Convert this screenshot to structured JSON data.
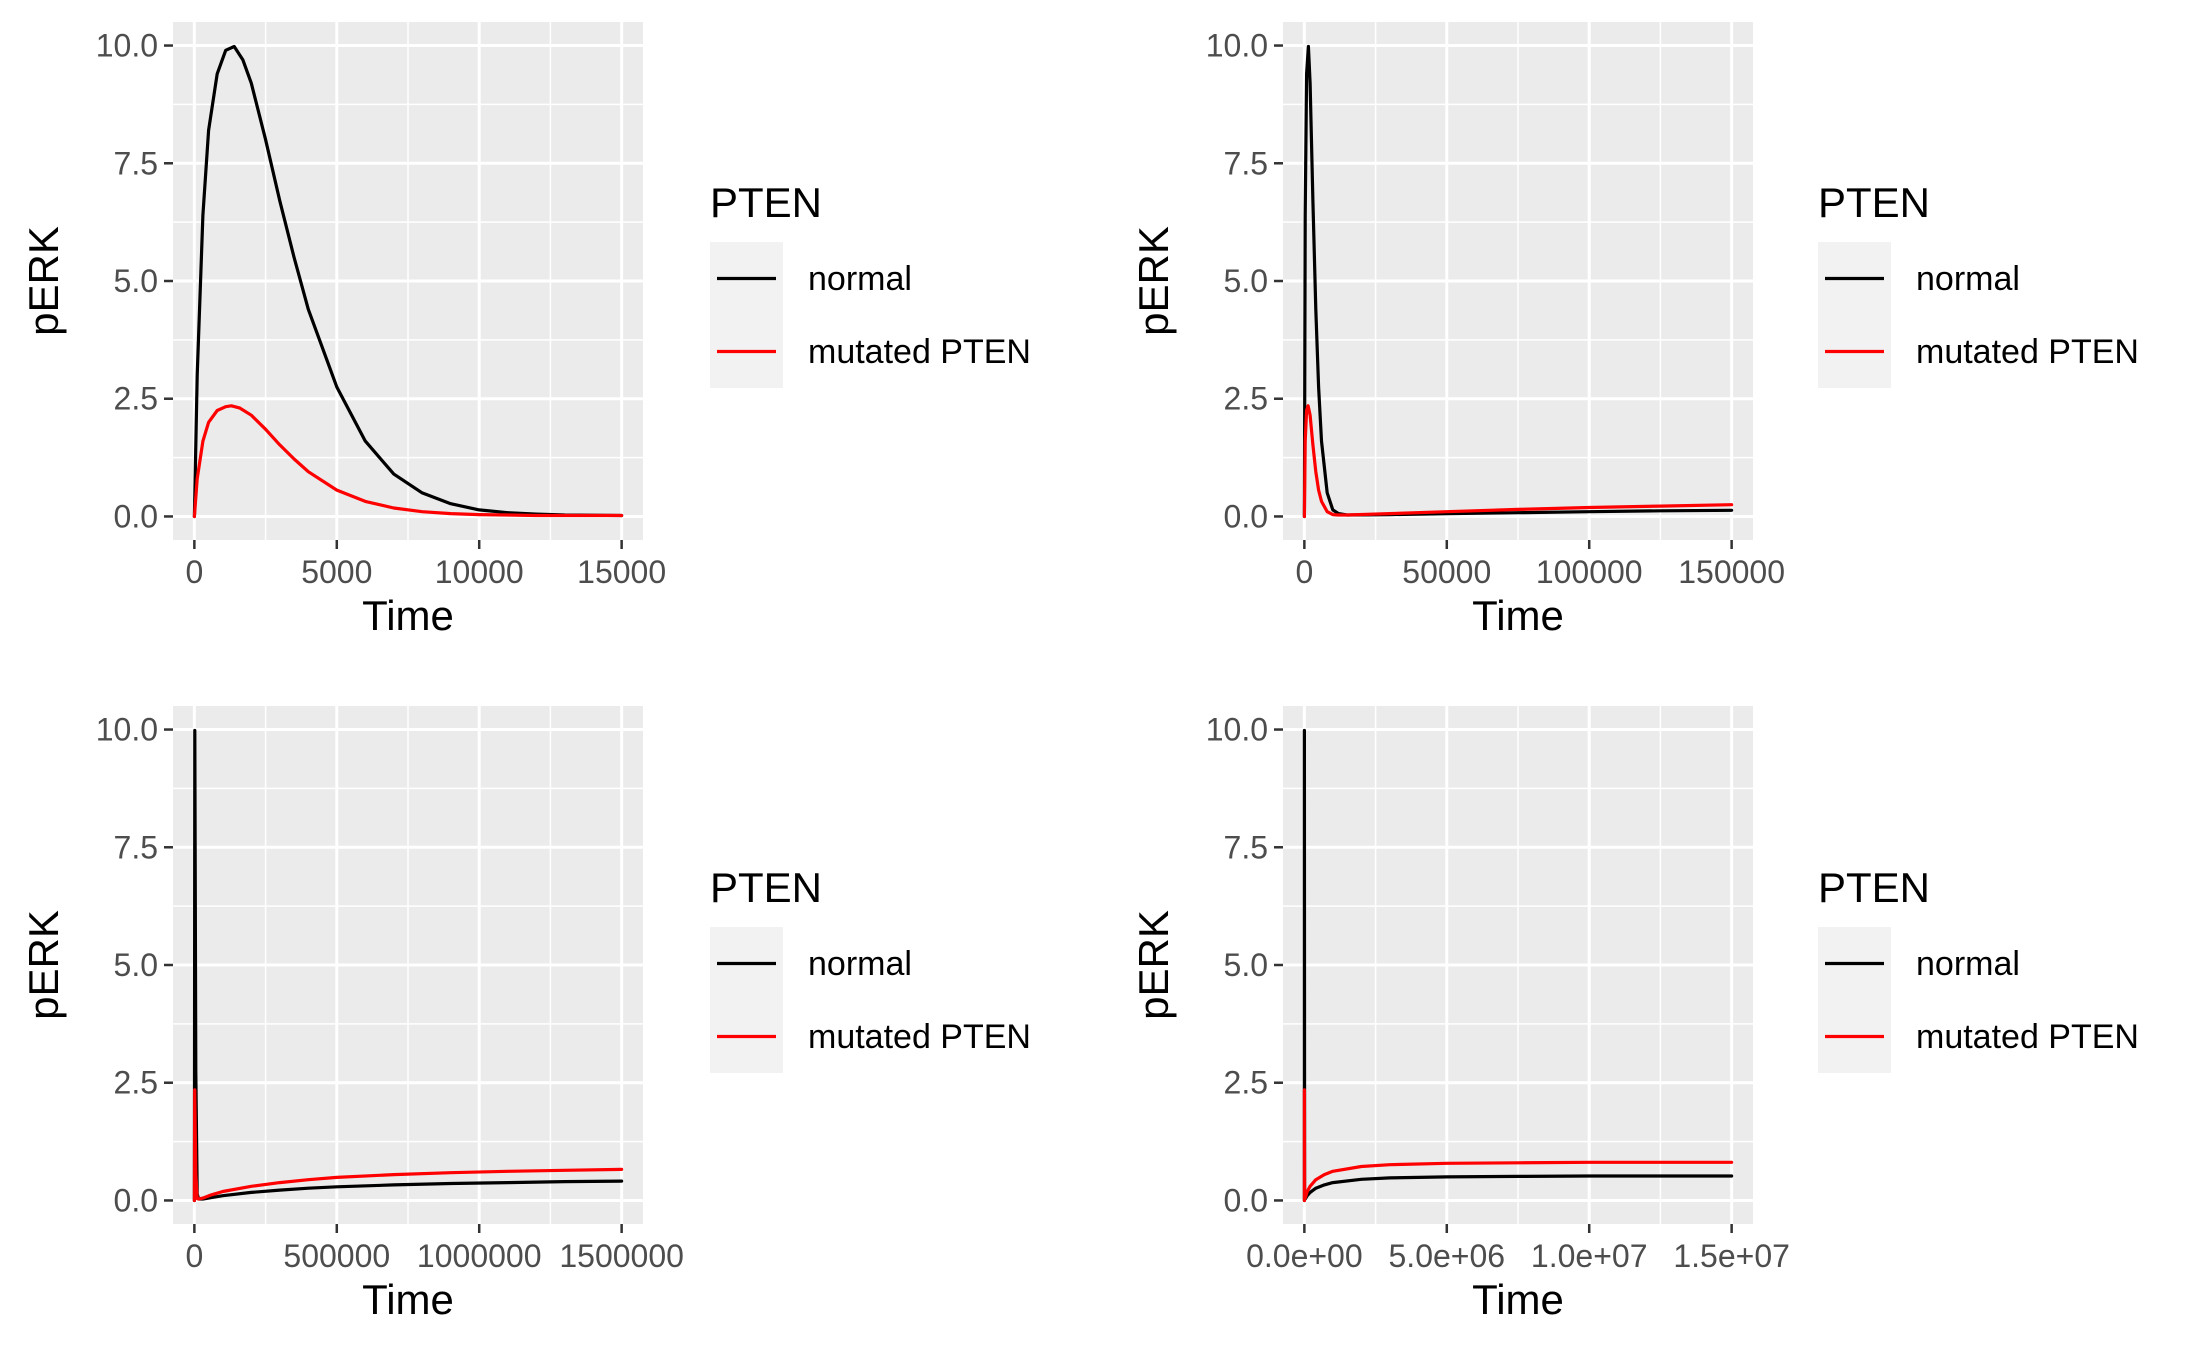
{
  "legend": {
    "title": "PTEN",
    "entries": [
      {
        "label": "normal",
        "color": "#000000"
      },
      {
        "label": "mutated PTEN",
        "color": "#ff0000"
      }
    ]
  },
  "colors": {
    "panel_background": "#ebebeb",
    "gridline": "#ffffff",
    "tick_text": "#4d4d4d",
    "normal": "#000000",
    "mutated": "#ff0000"
  },
  "chart_data": [
    {
      "type": "line",
      "xlabel": "Time",
      "ylabel": "pERK",
      "xlim": [
        -750,
        15750
      ],
      "ylim": [
        -0.5,
        10.5
      ],
      "x_ticks": [
        0,
        5000,
        10000,
        15000
      ],
      "x_tick_labels": [
        "0",
        "5000",
        "10000",
        "15000"
      ],
      "y_ticks": [
        0,
        2.5,
        5,
        7.5,
        10
      ],
      "y_tick_labels": [
        "0.0",
        "2.5",
        "5.0",
        "7.5",
        "10.0"
      ],
      "grid": true,
      "legend_position": "right",
      "series": [
        {
          "name": "normal",
          "color": "#000000",
          "x": [
            0,
            100,
            300,
            500,
            800,
            1100,
            1400,
            1700,
            2000,
            2500,
            3000,
            3500,
            4000,
            5000,
            6000,
            7000,
            8000,
            9000,
            10000,
            11000,
            12000,
            13000,
            15000
          ],
          "y": [
            0,
            3.0,
            6.4,
            8.2,
            9.4,
            9.9,
            9.98,
            9.7,
            9.2,
            8.0,
            6.7,
            5.5,
            4.4,
            2.75,
            1.6,
            0.9,
            0.5,
            0.27,
            0.14,
            0.08,
            0.05,
            0.03,
            0.02
          ]
        },
        {
          "name": "mutated PTEN",
          "color": "#ff0000",
          "x": [
            0,
            100,
            300,
            500,
            800,
            1100,
            1300,
            1600,
            2000,
            2500,
            3000,
            3500,
            4000,
            5000,
            6000,
            7000,
            8000,
            9000,
            10000,
            11000,
            12000,
            15000
          ],
          "y": [
            0,
            0.8,
            1.6,
            2.0,
            2.25,
            2.33,
            2.35,
            2.3,
            2.15,
            1.85,
            1.52,
            1.22,
            0.95,
            0.56,
            0.32,
            0.18,
            0.1,
            0.06,
            0.04,
            0.03,
            0.02,
            0.02
          ]
        }
      ]
    },
    {
      "type": "line",
      "xlabel": "Time",
      "ylabel": "pERK",
      "xlim": [
        -7500,
        157500
      ],
      "ylim": [
        -0.5,
        10.5
      ],
      "x_ticks": [
        0,
        50000,
        100000,
        150000
      ],
      "x_tick_labels": [
        "0",
        "50000",
        "100000",
        "150000"
      ],
      "y_ticks": [
        0,
        2.5,
        5,
        7.5,
        10
      ],
      "y_tick_labels": [
        "0.0",
        "2.5",
        "5.0",
        "7.5",
        "10.0"
      ],
      "grid": true,
      "legend_position": "right",
      "series": [
        {
          "name": "normal",
          "color": "#000000",
          "x": [
            0,
            300,
            800,
            1400,
            2000,
            3000,
            4000,
            5000,
            6000,
            8000,
            10000,
            12000,
            15000,
            30000,
            50000,
            75000,
            100000,
            125000,
            150000
          ],
          "y": [
            0,
            6.4,
            9.4,
            9.98,
            9.2,
            6.7,
            4.4,
            2.75,
            1.6,
            0.5,
            0.14,
            0.06,
            0.03,
            0.04,
            0.06,
            0.08,
            0.1,
            0.12,
            0.13
          ]
        },
        {
          "name": "mutated PTEN",
          "color": "#ff0000",
          "x": [
            0,
            300,
            800,
            1300,
            2000,
            3000,
            4000,
            5000,
            6000,
            8000,
            10000,
            12000,
            15000,
            30000,
            50000,
            75000,
            100000,
            125000,
            150000
          ],
          "y": [
            0,
            1.6,
            2.25,
            2.35,
            2.15,
            1.52,
            0.95,
            0.56,
            0.32,
            0.1,
            0.04,
            0.03,
            0.03,
            0.06,
            0.1,
            0.15,
            0.19,
            0.22,
            0.25
          ]
        }
      ]
    },
    {
      "type": "line",
      "xlabel": "Time",
      "ylabel": "pERK",
      "xlim": [
        -75000,
        1575000
      ],
      "ylim": [
        -0.5,
        10.5
      ],
      "x_ticks": [
        0,
        500000,
        1000000,
        1500000
      ],
      "x_tick_labels": [
        "0",
        "500000",
        "1000000",
        "1500000"
      ],
      "y_ticks": [
        0,
        2.5,
        5,
        7.5,
        10
      ],
      "y_tick_labels": [
        "0.0",
        "2.5",
        "5.0",
        "7.5",
        "10.0"
      ],
      "grid": true,
      "legend_position": "right",
      "series": [
        {
          "name": "normal",
          "color": "#000000",
          "x": [
            0,
            1400,
            5000,
            10000,
            15000,
            30000,
            60000,
            100000,
            200000,
            300000,
            400000,
            500000,
            700000,
            900000,
            1100000,
            1300000,
            1500000
          ],
          "y": [
            0,
            9.98,
            2.75,
            0.14,
            0.03,
            0.03,
            0.06,
            0.1,
            0.17,
            0.22,
            0.26,
            0.29,
            0.33,
            0.36,
            0.38,
            0.4,
            0.41
          ]
        },
        {
          "name": "mutated PTEN",
          "color": "#ff0000",
          "x": [
            0,
            1300,
            5000,
            10000,
            15000,
            30000,
            60000,
            100000,
            200000,
            300000,
            400000,
            500000,
            700000,
            900000,
            1100000,
            1300000,
            1500000
          ],
          "y": [
            0,
            2.35,
            0.56,
            0.04,
            0.03,
            0.05,
            0.12,
            0.19,
            0.3,
            0.38,
            0.44,
            0.49,
            0.55,
            0.59,
            0.62,
            0.64,
            0.66
          ]
        }
      ]
    },
    {
      "type": "line",
      "xlabel": "Time",
      "ylabel": "pERK",
      "xlim": [
        -750000,
        15750000
      ],
      "ylim": [
        -0.5,
        10.5
      ],
      "x_ticks": [
        0,
        5000000,
        10000000,
        15000000
      ],
      "x_tick_labels": [
        "0.0e+00",
        "5.0e+06",
        "1.0e+07",
        "1.5e+07"
      ],
      "y_ticks": [
        0,
        2.5,
        5,
        7.5,
        10
      ],
      "y_tick_labels": [
        "0.0",
        "2.5",
        "5.0",
        "7.5",
        "10.0"
      ],
      "grid": true,
      "legend_position": "right",
      "series": [
        {
          "name": "normal",
          "color": "#000000",
          "x": [
            0,
            1400,
            10000,
            30000,
            100000,
            200000,
            400000,
            700000,
            1000000,
            2000000,
            3000000,
            5000000,
            7500000,
            10000000,
            12500000,
            15000000
          ],
          "y": [
            0,
            9.98,
            0.14,
            0.03,
            0.1,
            0.17,
            0.26,
            0.33,
            0.38,
            0.45,
            0.48,
            0.5,
            0.51,
            0.52,
            0.52,
            0.52
          ]
        },
        {
          "name": "mutated PTEN",
          "color": "#ff0000",
          "x": [
            0,
            1300,
            10000,
            30000,
            100000,
            200000,
            400000,
            700000,
            1000000,
            2000000,
            3000000,
            5000000,
            7500000,
            10000000,
            12500000,
            15000000
          ],
          "y": [
            0,
            2.35,
            0.04,
            0.05,
            0.19,
            0.3,
            0.44,
            0.55,
            0.62,
            0.72,
            0.76,
            0.79,
            0.8,
            0.81,
            0.81,
            0.81
          ]
        }
      ]
    }
  ]
}
